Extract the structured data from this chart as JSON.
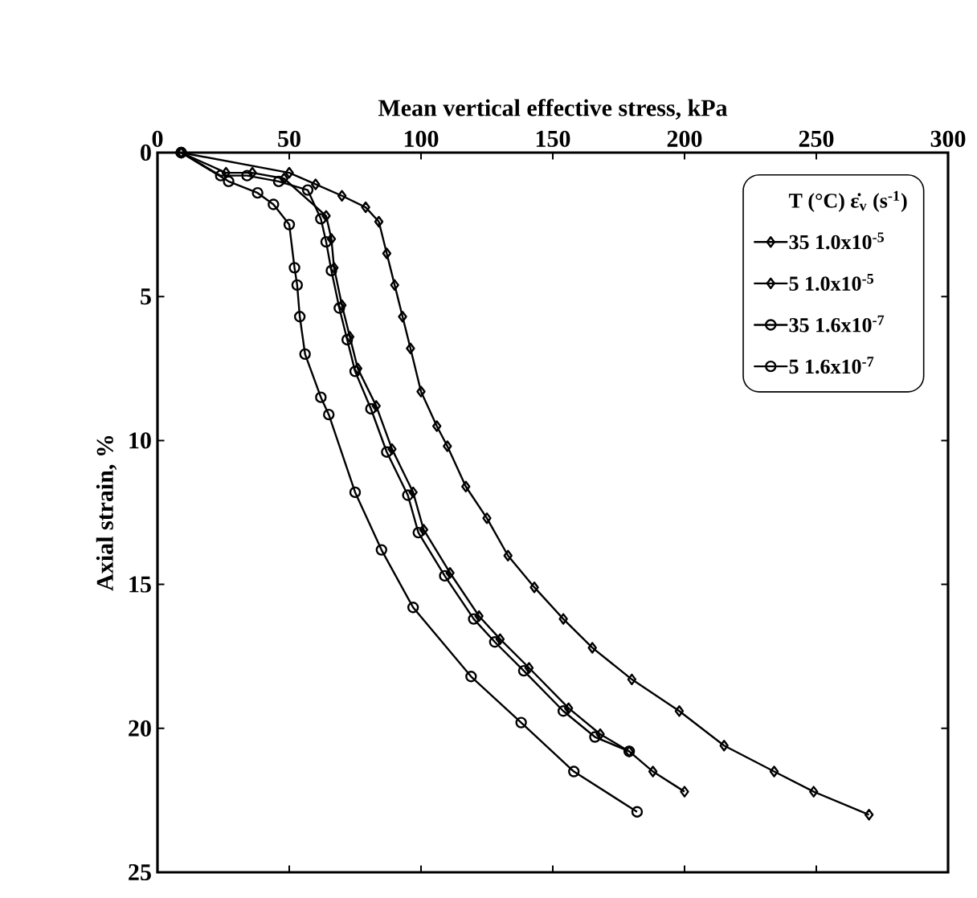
{
  "chart_data": {
    "type": "line",
    "xlabel": "Mean vertical effective stress, kPa",
    "ylabel": "Axial strain, %",
    "legend_title": "T (°C)   ε̇$_{v}$ (s$^{-1}$)",
    "xlim": [
      0,
      300
    ],
    "ylim": [
      25,
      0
    ],
    "xticks": [
      0,
      50,
      100,
      150,
      200,
      250,
      300
    ],
    "yticks": [
      0,
      5,
      10,
      15,
      20,
      25
    ],
    "grid": false,
    "legend": "top right",
    "line_style": "solid",
    "series": [
      {
        "name": "35   1.0x10$^{-5}$",
        "marker": "diamond",
        "color": "#000000",
        "x": [
          9,
          26,
          36,
          48,
          59,
          64,
          66,
          67,
          70,
          73,
          76,
          83,
          89,
          97,
          101,
          111,
          122,
          130,
          141,
          156,
          168,
          179,
          188,
          200
        ],
        "values": [
          0,
          0.7,
          0.7,
          0.9,
          null,
          2.2,
          3.0,
          4.0,
          5.3,
          6.4,
          7.5,
          8.8,
          10.3,
          11.8,
          13.1,
          14.6,
          16.1,
          16.9,
          17.9,
          19.3,
          20.2,
          20.8,
          21.5,
          22.2
        ]
      },
      {
        "name": "5   1.0x10$^{-5}$",
        "marker": "diamond",
        "color": "#000000",
        "x": [
          9,
          50,
          60,
          70,
          79,
          84,
          87,
          90,
          93,
          96,
          100,
          106,
          110,
          117,
          125,
          133,
          143,
          154,
          165,
          180,
          198,
          215,
          234,
          249,
          270
        ],
        "values": [
          0,
          0.7,
          1.1,
          1.5,
          1.9,
          2.4,
          3.5,
          4.6,
          5.7,
          6.8,
          8.3,
          9.5,
          10.2,
          11.6,
          12.7,
          14.0,
          15.1,
          16.2,
          17.2,
          18.3,
          19.4,
          20.6,
          21.5,
          22.2,
          23.0
        ]
      },
      {
        "name": "35   1.6x10$^{-7}$",
        "marker": "circle",
        "color": "#000000",
        "x": [
          9,
          27,
          38,
          44,
          50,
          52,
          53,
          54,
          56,
          62,
          65,
          75,
          85,
          97,
          119,
          138,
          158,
          182
        ],
        "values": [
          0,
          1.0,
          1.4,
          1.8,
          2.5,
          4.0,
          4.6,
          5.7,
          7.0,
          8.5,
          9.1,
          11.8,
          13.8,
          15.8,
          18.2,
          19.8,
          21.5,
          22.9
        ]
      },
      {
        "name": "5   1.6x10$^{-7}$",
        "marker": "circle",
        "color": "#000000",
        "x": [
          9,
          24,
          34,
          46,
          57,
          62,
          64,
          66,
          69,
          72,
          75,
          81,
          87,
          95,
          99,
          109,
          120,
          128,
          139,
          154,
          166,
          179
        ],
        "values": [
          0,
          0.8,
          0.8,
          1.0,
          1.3,
          2.3,
          3.1,
          4.1,
          5.4,
          6.5,
          7.6,
          8.9,
          10.4,
          11.9,
          13.2,
          14.7,
          16.2,
          17.0,
          18.0,
          19.4,
          20.3,
          20.8
        ]
      }
    ]
  }
}
